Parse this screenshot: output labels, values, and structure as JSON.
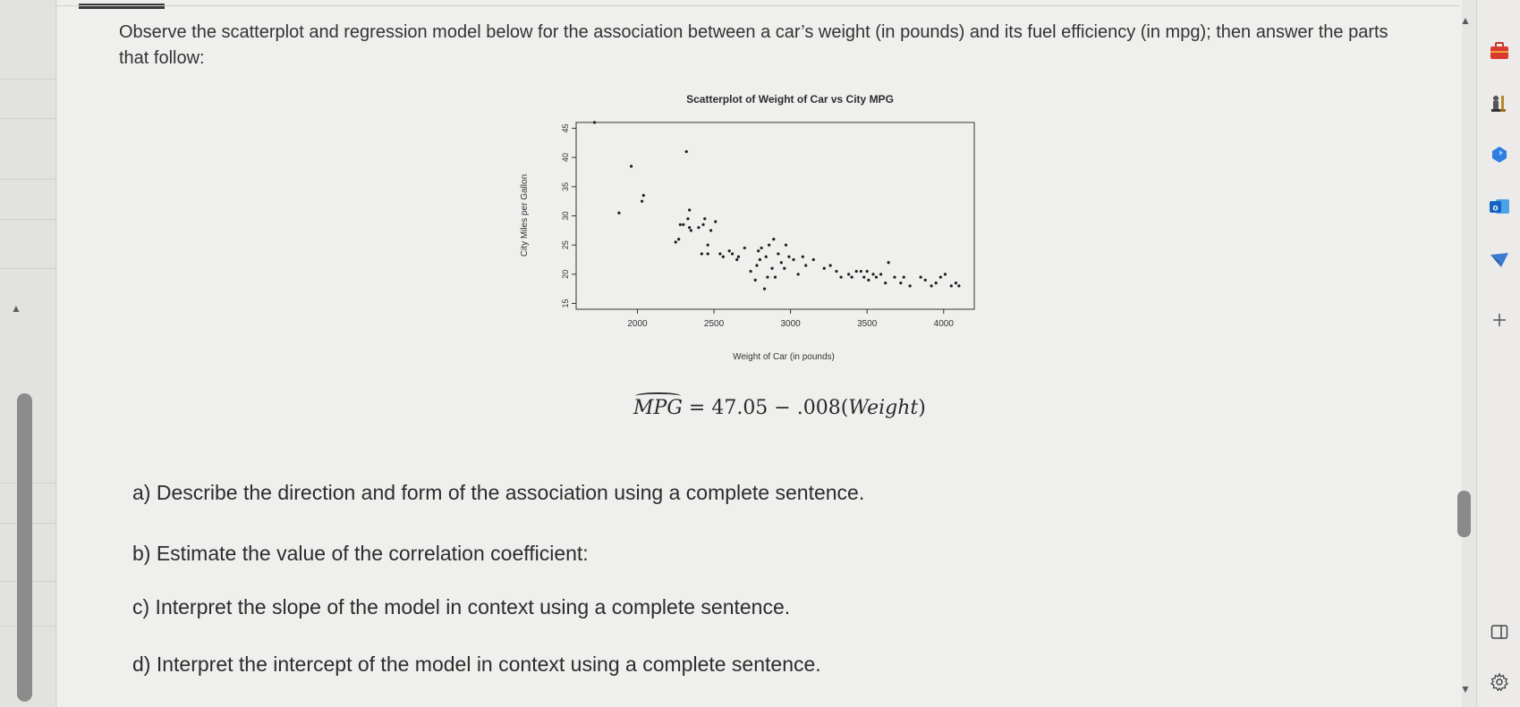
{
  "question": {
    "text": "Observe the scatterplot and regression model below for the association between a car’s weight (in pounds) and its fuel efficiency (in mpg); then answer the parts that follow:"
  },
  "chart_data": {
    "type": "scatter",
    "title": "Scatterplot of Weight of Car vs City MPG",
    "xlabel": "Weight of Car (in pounds)",
    "ylabel": "City Miles per Gallon",
    "xticks": [
      2000,
      2500,
      3000,
      3500,
      4000
    ],
    "yticks": [
      15,
      20,
      25,
      30,
      35,
      40,
      45
    ],
    "xlim": [
      1600,
      4200
    ],
    "ylim": [
      14,
      46
    ],
    "grid": false,
    "x": [
      1720,
      1880,
      1960,
      2030,
      2040,
      2250,
      2270,
      2280,
      2300,
      2320,
      2330,
      2340,
      2340,
      2350,
      2400,
      2420,
      2430,
      2440,
      2460,
      2460,
      2480,
      2510,
      2540,
      2560,
      2600,
      2620,
      2650,
      2660,
      2700,
      2740,
      2770,
      2780,
      2790,
      2800,
      2810,
      2830,
      2840,
      2850,
      2860,
      2880,
      2890,
      2900,
      2920,
      2940,
      2960,
      2970,
      2990,
      3020,
      3050,
      3080,
      3100,
      3150,
      3220,
      3260,
      3300,
      3330,
      3380,
      3400,
      3430,
      3460,
      3480,
      3500,
      3510,
      3540,
      3560,
      3590,
      3620,
      3640,
      3680,
      3720,
      3740,
      3780,
      3850,
      3880,
      3920,
      3950,
      3980,
      4010,
      4050,
      4080,
      4100
    ],
    "y": [
      46,
      30.5,
      38.5,
      32.5,
      33.5,
      25.5,
      26,
      28.5,
      28.5,
      41,
      29.5,
      28,
      31,
      27.5,
      28,
      23.5,
      28.5,
      29.5,
      25,
      23.5,
      27.5,
      29,
      23.5,
      23,
      24,
      23.5,
      22.5,
      23,
      24.5,
      20.5,
      19,
      21.5,
      24,
      22.5,
      24.5,
      17.5,
      23,
      19.5,
      25,
      21,
      26,
      19.5,
      23.5,
      22,
      21,
      25,
      23,
      22.5,
      20,
      23,
      21.5,
      22.5,
      21,
      21.5,
      20.5,
      19.5,
      20,
      19.5,
      20.5,
      20.5,
      19.5,
      20.5,
      19,
      20,
      19.5,
      20,
      18.5,
      22,
      19.5,
      18.5,
      19.5,
      18,
      19.5,
      19,
      18,
      18.5,
      19.5,
      20,
      18,
      18.5,
      18
    ]
  },
  "formula": {
    "lhs": "MPG",
    "rhs_num": " = 47.05 − .008(",
    "rhs_var": "Weight",
    "rhs_end": ")"
  },
  "parts": [
    "a) Describe the direction and form of the association using a complete sentence.",
    "b) Estimate the value of the correlation coefficient:",
    "c) Interpret the slope of the model in context using a complete sentence.",
    "d) Interpret the intercept of the model in context using a complete sentence."
  ],
  "sidebar_icons": [
    "briefcase-icon",
    "chess-icon",
    "copilot-icon",
    "outlook-icon",
    "send-icon",
    "add-icon",
    "panel-icon",
    "settings-icon"
  ],
  "colors": {
    "page": "#efefed",
    "text": "#2c2c2c",
    "scrollbar": "#8a8a8a",
    "outlook": "#1a73c8",
    "briefcase": "#d83b2d"
  }
}
